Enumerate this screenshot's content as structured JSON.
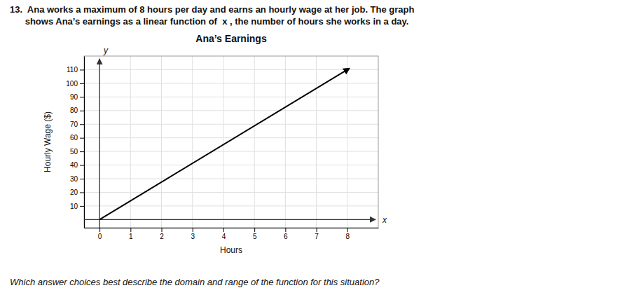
{
  "chart_data": {
    "type": "line",
    "header": [
      "13.  Ana works a maximum of 8 hours per day and earns an hourly wage at her job. The graph",
      "      shows Ana’s earnings as a linear function of  x , the number of hours she works in a day."
    ],
    "title": "Ana’s Earnings",
    "xlabel": "Hours",
    "ylabel": "Hourly Wage ($)",
    "x_axis_end_label": "x",
    "y_axis_end_label": "y",
    "footer": "Which answer choices best describe the domain and range of the function for this situation?",
    "x": [
      0,
      8
    ],
    "values": [
      0,
      110
    ],
    "color": "#000000",
    "xlim": [
      -0.5,
      9.0
    ],
    "ylim": [
      -6,
      120
    ],
    "xticks": [
      0,
      1,
      2,
      3,
      4,
      5,
      6,
      7,
      8
    ],
    "yticks": [
      10,
      20,
      30,
      40,
      50,
      60,
      70,
      80,
      90,
      100,
      110
    ],
    "grid": true
  }
}
